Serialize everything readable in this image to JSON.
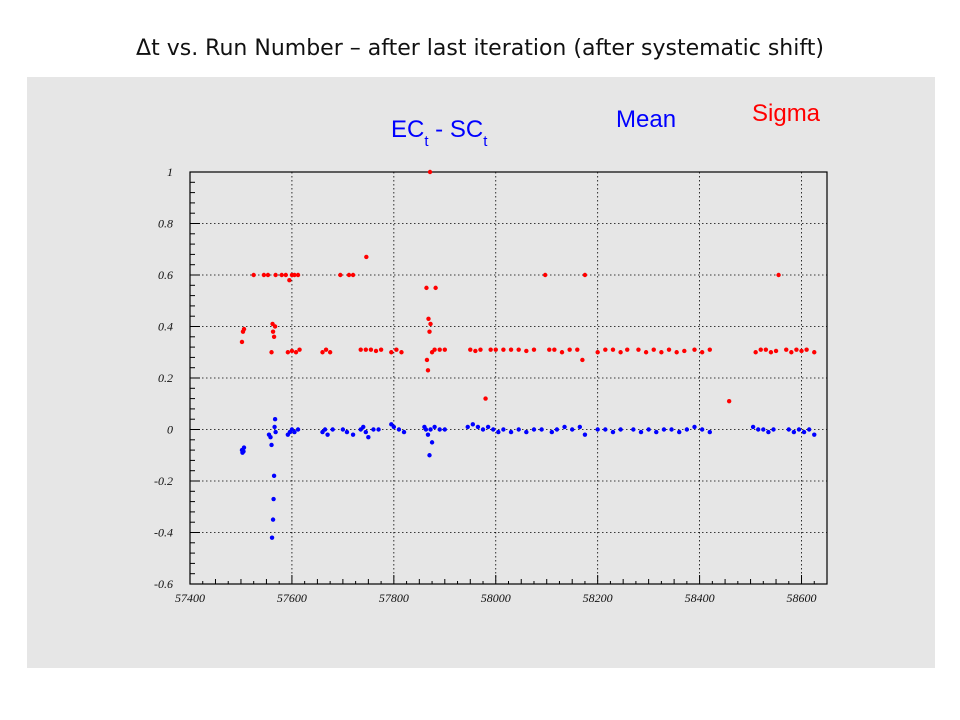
{
  "page_title": "Δt vs. Run Number – after last iteration (after systematic shift)",
  "legend": {
    "quantity": {
      "main": "EC",
      "sub1": "t",
      "mid": " - SC",
      "sub2": "t"
    },
    "mean_label": "Mean",
    "sigma_label": "Sigma"
  },
  "colors": {
    "mean": "#0000ff",
    "sigma": "#ff0000",
    "panel": "#e6e6e6"
  },
  "chart_data": {
    "type": "scatter",
    "xlim": [
      57400,
      58650
    ],
    "ylim": [
      -0.6,
      1.0
    ],
    "x_ticks": [
      "57400",
      "57600",
      "57800",
      "58000",
      "58200",
      "58400",
      "58600"
    ],
    "y_ticks": [
      "-0.6",
      "-0.4",
      "-0.2",
      "0",
      "0.2",
      "0.4",
      "0.6",
      "0.8",
      "1"
    ],
    "grid": true,
    "series": [
      {
        "name": "Mean",
        "color": "#0000ff",
        "points": [
          [
            57502,
            -0.08
          ],
          [
            57503,
            -0.09
          ],
          [
            57505,
            -0.085
          ],
          [
            57506,
            -0.07
          ],
          [
            57555,
            -0.02
          ],
          [
            57558,
            -0.03
          ],
          [
            57560,
            -0.06
          ],
          [
            57561,
            -0.42
          ],
          [
            57563,
            -0.35
          ],
          [
            57564,
            -0.27
          ],
          [
            57565,
            -0.18
          ],
          [
            57566,
            0.01
          ],
          [
            57567,
            0.04
          ],
          [
            57568,
            -0.01
          ],
          [
            57592,
            -0.02
          ],
          [
            57596,
            -0.01
          ],
          [
            57600,
            0.0
          ],
          [
            57605,
            -0.01
          ],
          [
            57612,
            0.0
          ],
          [
            57660,
            -0.01
          ],
          [
            57665,
            0.0
          ],
          [
            57670,
            -0.02
          ],
          [
            57680,
            0.0
          ],
          [
            57700,
            0.0
          ],
          [
            57708,
            -0.01
          ],
          [
            57720,
            -0.02
          ],
          [
            57735,
            0.0
          ],
          [
            57740,
            0.01
          ],
          [
            57745,
            -0.01
          ],
          [
            57750,
            -0.03
          ],
          [
            57760,
            0.0
          ],
          [
            57770,
            0.0
          ],
          [
            57795,
            0.02
          ],
          [
            57800,
            0.01
          ],
          [
            57810,
            0.0
          ],
          [
            57820,
            -0.01
          ],
          [
            57860,
            0.01
          ],
          [
            57863,
            0.0
          ],
          [
            57867,
            -0.02
          ],
          [
            57870,
            -0.1
          ],
          [
            57872,
            0.0
          ],
          [
            57875,
            -0.05
          ],
          [
            57880,
            0.01
          ],
          [
            57890,
            0.0
          ],
          [
            57900,
            0.0
          ],
          [
            57945,
            0.01
          ],
          [
            57955,
            0.02
          ],
          [
            57965,
            0.01
          ],
          [
            57975,
            0.0
          ],
          [
            57985,
            0.01
          ],
          [
            57995,
            0.0
          ],
          [
            58005,
            -0.01
          ],
          [
            58015,
            0.0
          ],
          [
            58030,
            -0.01
          ],
          [
            58045,
            0.0
          ],
          [
            58060,
            -0.01
          ],
          [
            58075,
            0.0
          ],
          [
            58090,
            0.0
          ],
          [
            58110,
            -0.01
          ],
          [
            58120,
            0.0
          ],
          [
            58135,
            0.01
          ],
          [
            58150,
            0.0
          ],
          [
            58165,
            0.01
          ],
          [
            58175,
            -0.02
          ],
          [
            58200,
            0.0
          ],
          [
            58215,
            0.0
          ],
          [
            58230,
            -0.01
          ],
          [
            58245,
            0.0
          ],
          [
            58270,
            0.0
          ],
          [
            58285,
            -0.01
          ],
          [
            58300,
            0.0
          ],
          [
            58315,
            -0.01
          ],
          [
            58330,
            0.0
          ],
          [
            58345,
            0.0
          ],
          [
            58360,
            -0.01
          ],
          [
            58375,
            0.0
          ],
          [
            58390,
            0.01
          ],
          [
            58405,
            0.0
          ],
          [
            58420,
            -0.01
          ],
          [
            58505,
            0.01
          ],
          [
            58515,
            0.0
          ],
          [
            58525,
            0.0
          ],
          [
            58535,
            -0.01
          ],
          [
            58545,
            0.0
          ],
          [
            58575,
            0.0
          ],
          [
            58585,
            -0.01
          ],
          [
            58595,
            0.0
          ],
          [
            58605,
            -0.01
          ],
          [
            58615,
            0.0
          ],
          [
            58625,
            -0.02
          ]
        ]
      },
      {
        "name": "Sigma",
        "color": "#ff0000",
        "points": [
          [
            57502,
            0.34
          ],
          [
            57504,
            0.38
          ],
          [
            57506,
            0.39
          ],
          [
            57525,
            0.6
          ],
          [
            57545,
            0.6
          ],
          [
            57553,
            0.6
          ],
          [
            57560,
            0.3
          ],
          [
            57562,
            0.41
          ],
          [
            57563,
            0.38
          ],
          [
            57565,
            0.36
          ],
          [
            57567,
            0.4
          ],
          [
            57568,
            0.6
          ],
          [
            57580,
            0.6
          ],
          [
            57588,
            0.6
          ],
          [
            57595,
            0.58
          ],
          [
            57600,
            0.6
          ],
          [
            57605,
            0.6
          ],
          [
            57612,
            0.6
          ],
          [
            57592,
            0.3
          ],
          [
            57600,
            0.305
          ],
          [
            57608,
            0.3
          ],
          [
            57615,
            0.31
          ],
          [
            57660,
            0.3
          ],
          [
            57667,
            0.31
          ],
          [
            57675,
            0.3
          ],
          [
            57695,
            0.6
          ],
          [
            57712,
            0.6
          ],
          [
            57720,
            0.6
          ],
          [
            57746,
            0.67
          ],
          [
            57735,
            0.31
          ],
          [
            57745,
            0.31
          ],
          [
            57755,
            0.31
          ],
          [
            57765,
            0.305
          ],
          [
            57775,
            0.31
          ],
          [
            57795,
            0.3
          ],
          [
            57805,
            0.31
          ],
          [
            57815,
            0.3
          ],
          [
            57864,
            0.55
          ],
          [
            57868,
            0.43
          ],
          [
            57870,
            0.38
          ],
          [
            57872,
            0.41
          ],
          [
            57875,
            0.3
          ],
          [
            57867,
            0.23
          ],
          [
            57865,
            0.27
          ],
          [
            57871,
            1.0
          ],
          [
            57882,
            0.55
          ],
          [
            57880,
            0.31
          ],
          [
            57890,
            0.31
          ],
          [
            57900,
            0.31
          ],
          [
            57950,
            0.31
          ],
          [
            57960,
            0.305
          ],
          [
            57970,
            0.31
          ],
          [
            57980,
            0.12
          ],
          [
            57990,
            0.31
          ],
          [
            58000,
            0.31
          ],
          [
            58015,
            0.31
          ],
          [
            58030,
            0.31
          ],
          [
            58045,
            0.31
          ],
          [
            58060,
            0.305
          ],
          [
            58075,
            0.31
          ],
          [
            58097,
            0.6
          ],
          [
            58105,
            0.31
          ],
          [
            58115,
            0.31
          ],
          [
            58130,
            0.3
          ],
          [
            58145,
            0.31
          ],
          [
            58160,
            0.31
          ],
          [
            58170,
            0.27
          ],
          [
            58175,
            0.6
          ],
          [
            58200,
            0.3
          ],
          [
            58215,
            0.31
          ],
          [
            58230,
            0.31
          ],
          [
            58245,
            0.3
          ],
          [
            58258,
            0.31
          ],
          [
            58280,
            0.31
          ],
          [
            58295,
            0.3
          ],
          [
            58310,
            0.31
          ],
          [
            58325,
            0.3
          ],
          [
            58340,
            0.31
          ],
          [
            58355,
            0.3
          ],
          [
            58370,
            0.305
          ],
          [
            58390,
            0.31
          ],
          [
            58405,
            0.3
          ],
          [
            58420,
            0.31
          ],
          [
            58458,
            0.11
          ],
          [
            58510,
            0.3
          ],
          [
            58520,
            0.31
          ],
          [
            58530,
            0.31
          ],
          [
            58540,
            0.3
          ],
          [
            58550,
            0.305
          ],
          [
            58555,
            0.6
          ],
          [
            58570,
            0.31
          ],
          [
            58580,
            0.3
          ],
          [
            58590,
            0.31
          ],
          [
            58600,
            0.305
          ],
          [
            58610,
            0.31
          ],
          [
            58625,
            0.3
          ]
        ]
      }
    ]
  }
}
